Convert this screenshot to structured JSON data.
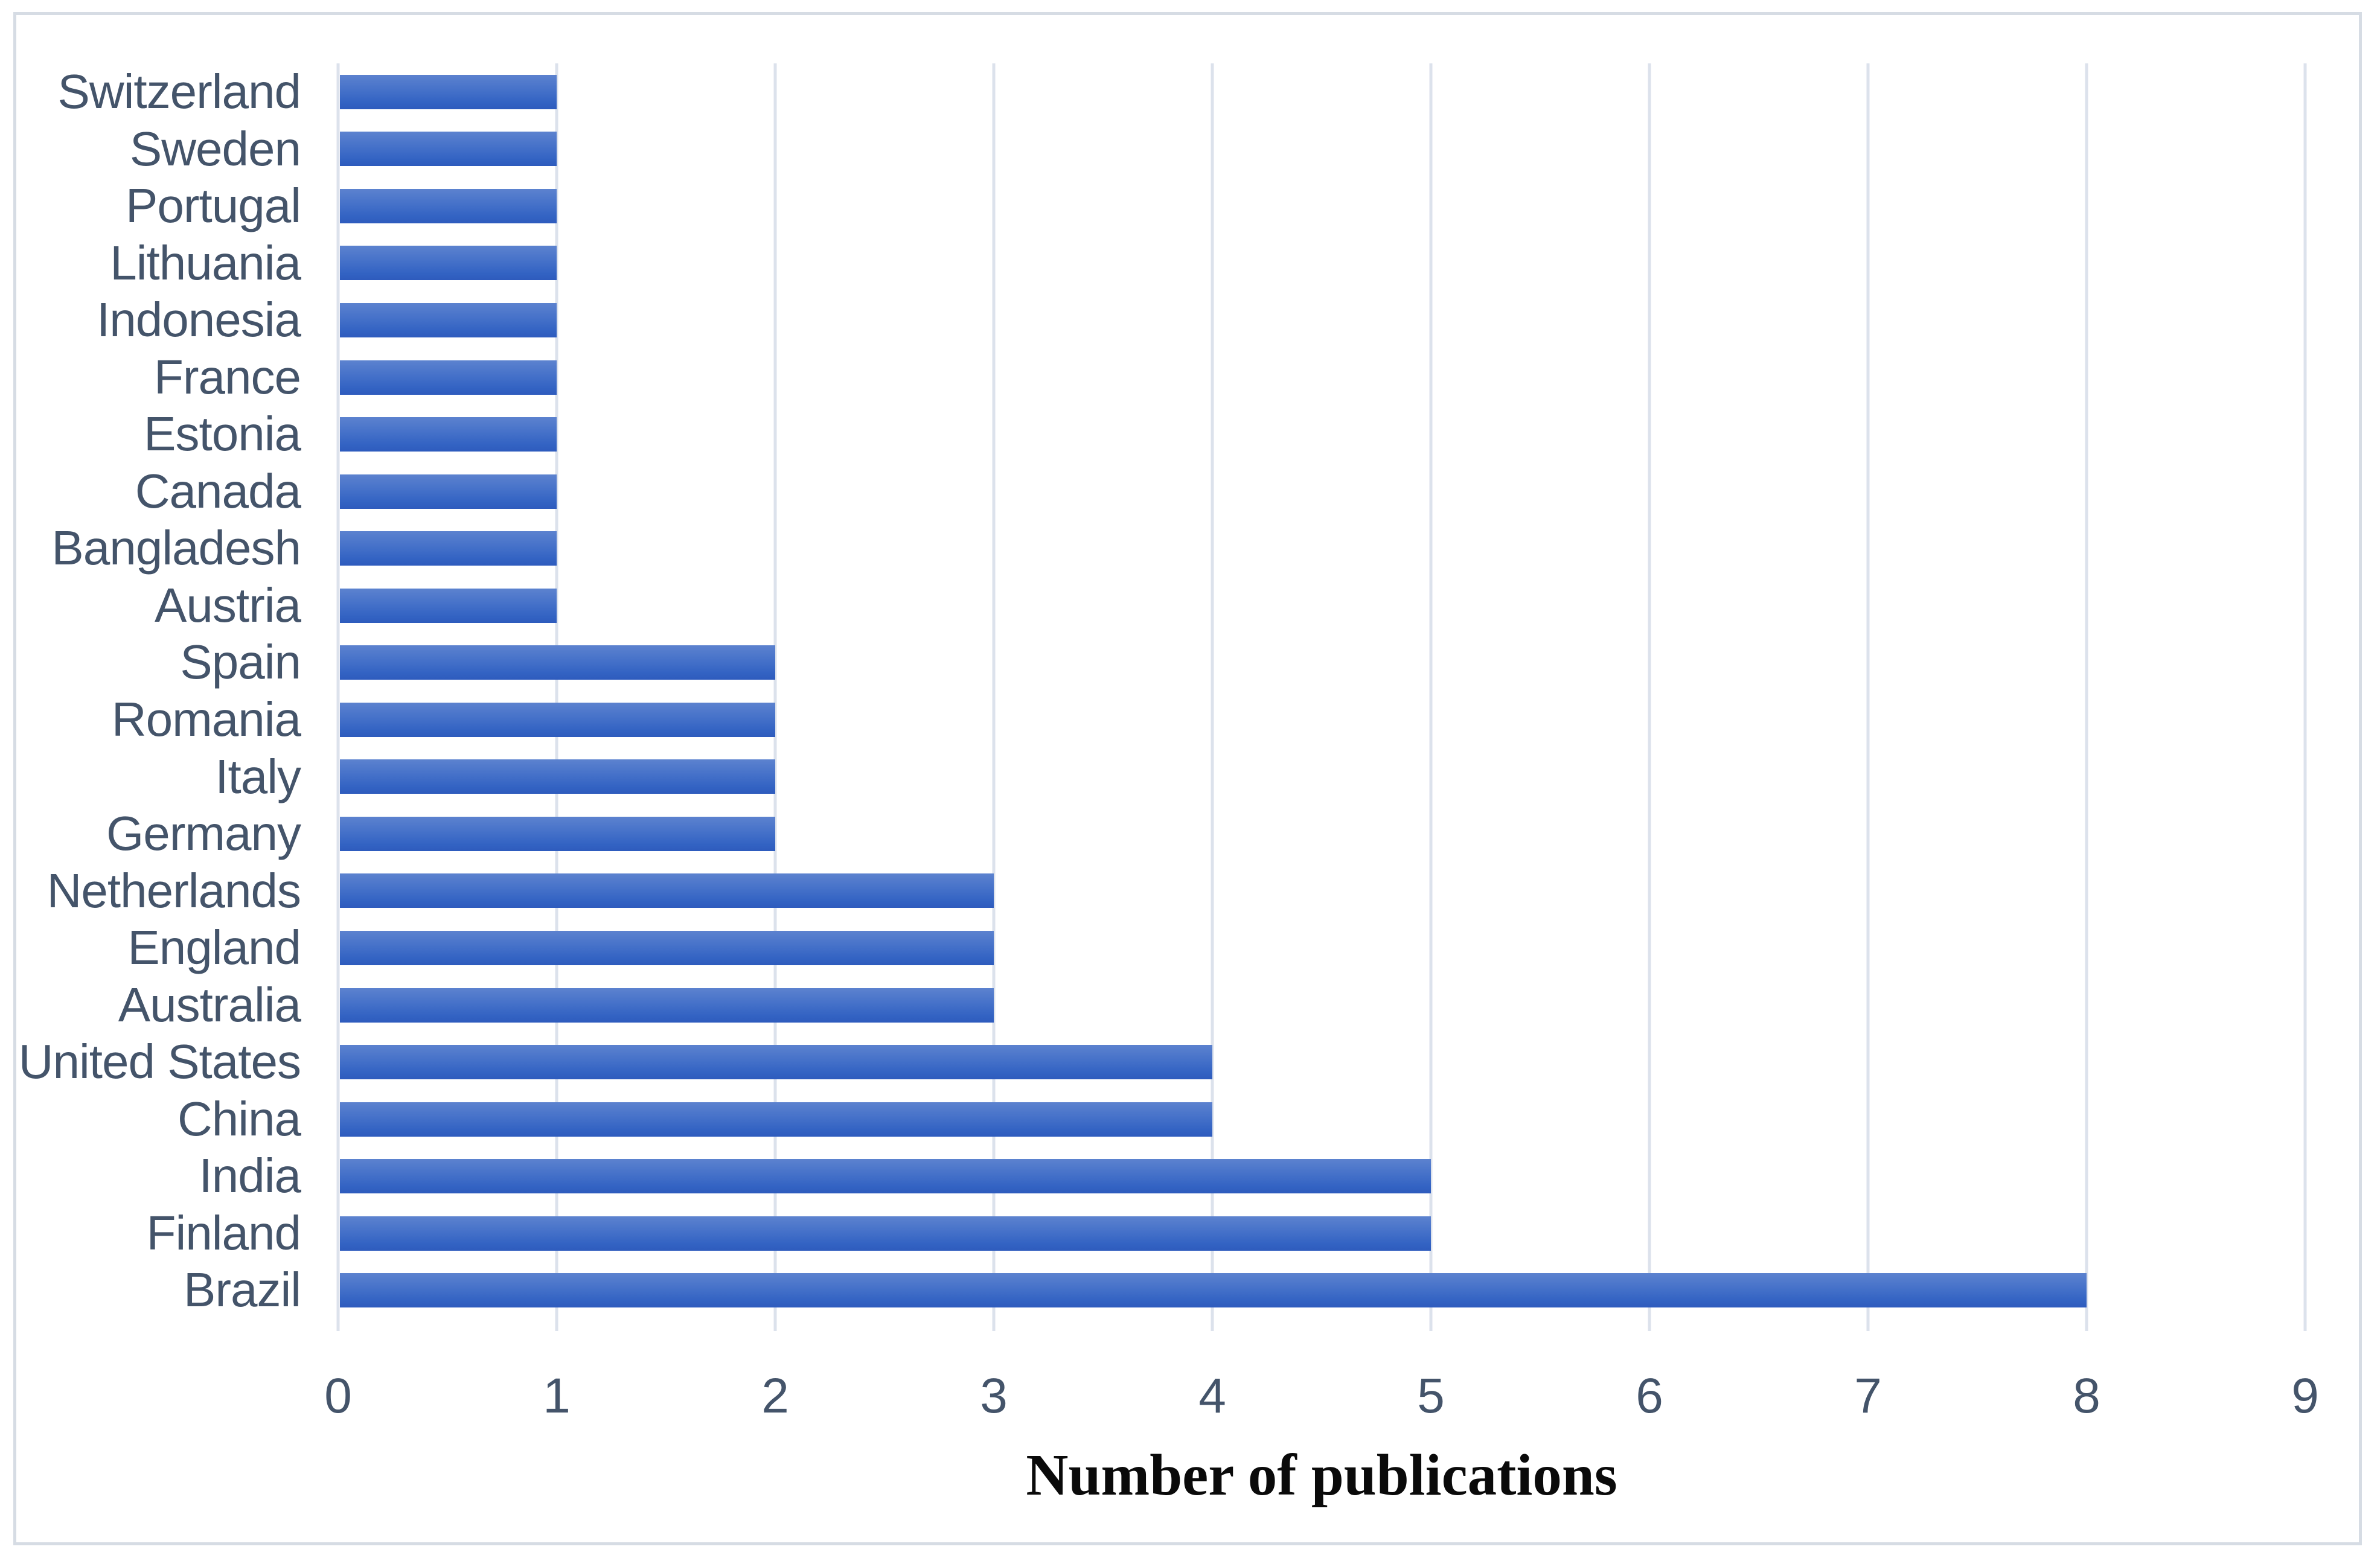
{
  "chart_data": {
    "type": "bar",
    "orientation": "horizontal",
    "title": "",
    "xlabel": "Number of publications",
    "ylabel": "",
    "categories": [
      "Switzerland",
      "Sweden",
      "Portugal",
      "Lithuania",
      "Indonesia",
      "France",
      "Estonia",
      "Canada",
      "Bangladesh",
      "Austria",
      "Spain",
      "Romania",
      "Italy",
      "Germany",
      "Netherlands",
      "England",
      "Australia",
      "United States",
      "China",
      "India",
      "Finland",
      "Brazil"
    ],
    "values": [
      1,
      1,
      1,
      1,
      1,
      1,
      1,
      1,
      1,
      1,
      2,
      2,
      2,
      2,
      3,
      3,
      3,
      4,
      4,
      5,
      5,
      8
    ],
    "xlim": [
      0,
      9
    ],
    "xtick_labels": [
      "0",
      "1",
      "2",
      "3",
      "4",
      "5",
      "6",
      "7",
      "8",
      "9"
    ],
    "legend": "none",
    "grid": "vertical-major",
    "colors": {
      "bar_gradient_top": "#5c82cf",
      "bar_gradient_bottom": "#2e5bbd",
      "axis_text": "#44546a",
      "gridline": "#dce2ec",
      "frame_border": "#d6dce4",
      "axis_title_text": "#0a0a0a"
    }
  }
}
